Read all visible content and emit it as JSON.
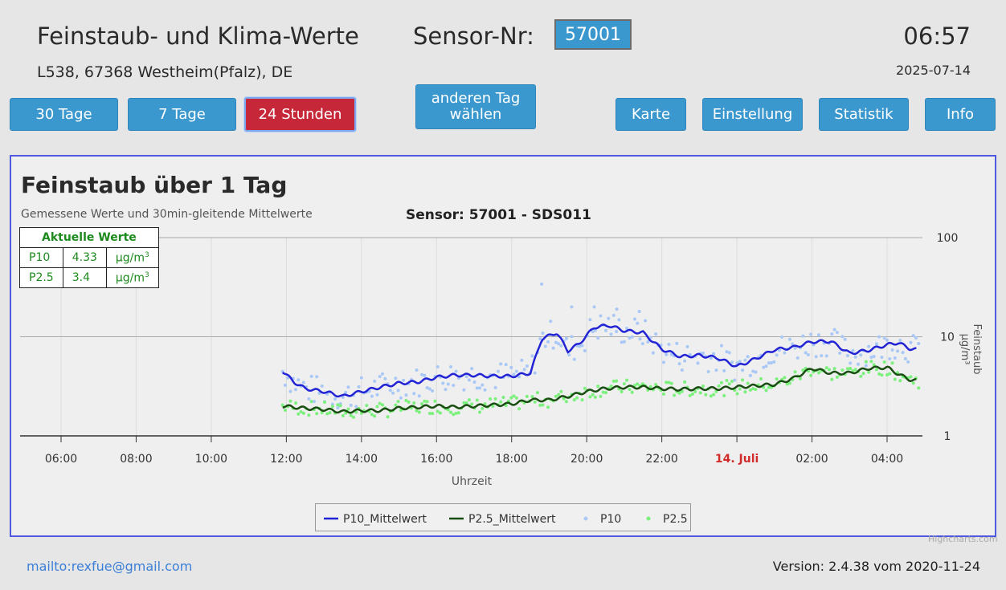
{
  "header": {
    "title": "Feinstaub- und Klima-Werte",
    "sensor_label": "Sensor-Nr:",
    "sensor_value": "57001",
    "time": "06:57",
    "address": "L538, 67368 Westheim(Pfalz), DE",
    "date": "2025-07-14"
  },
  "nav": {
    "btn_30": "30 Tage",
    "btn_7": "7 Tage",
    "btn_24": "24 Stunden",
    "other_day_1": "anderen Tag",
    "other_day_2": "wählen",
    "map": "Karte",
    "settings": "Einstellung",
    "stats": "Statistik",
    "info": "Info"
  },
  "chart": {
    "title": "Feinstaub über 1 Tag",
    "subtitle": "Gemessene Werte und 30min-gleitende Mittelwerte",
    "sensor": "Sensor: 57001 - SDS011",
    "credits": "Highcharts.com"
  },
  "current": {
    "heading": "Aktuelle Werte",
    "rows": [
      {
        "name": "P10",
        "value": "4.33",
        "unit": "µg/m",
        "sup": "3"
      },
      {
        "name": "P2.5",
        "value": "3.4",
        "unit": "µg/m",
        "sup": "3"
      }
    ]
  },
  "footer": {
    "mail": "mailto:rexfue@gmail.com",
    "version": "Version: 2.4.38 vom 2020-11-24"
  },
  "colors": {
    "p10_line": "#2323d6",
    "p25_line": "#1a4d12",
    "p10_dots": "#a9c8f5",
    "p25_dots": "#7cf07c",
    "active_button": "#c6283a",
    "button": "#3b98cf"
  },
  "chart_data": {
    "type": "line",
    "title": "Feinstaub über 1 Tag",
    "subtitle": "Gemessene Werte und 30min-gleitende Mittelwerte",
    "xlabel": "Uhrzeit",
    "ylabel": "Feinstaub µg/m³",
    "yscale": "log",
    "ylim": [
      1,
      100
    ],
    "yticks": [
      "1",
      "10",
      "100"
    ],
    "xlim": [
      5,
      29
    ],
    "xticks": [
      {
        "x": 6,
        "label": "06:00"
      },
      {
        "x": 8,
        "label": "08:00"
      },
      {
        "x": 10,
        "label": "10:00"
      },
      {
        "x": 12,
        "label": "12:00"
      },
      {
        "x": 14,
        "label": "14:00"
      },
      {
        "x": 16,
        "label": "16:00"
      },
      {
        "x": 18,
        "label": "18:00"
      },
      {
        "x": 20,
        "label": "20:00"
      },
      {
        "x": 22,
        "label": "22:00"
      },
      {
        "x": 24,
        "label": "14. Juli",
        "highlight": true
      },
      {
        "x": 26,
        "label": "02:00"
      },
      {
        "x": 28,
        "label": "04:00"
      }
    ],
    "legend_position": "bottom-center",
    "series": [
      {
        "name": "P10_Mittelwert",
        "kind": "line",
        "x": [
          11.9,
          12.2,
          12.5,
          13.0,
          13.5,
          14.0,
          14.5,
          15.0,
          15.5,
          16.0,
          16.5,
          17.0,
          17.5,
          18.0,
          18.5,
          18.8,
          19.2,
          19.5,
          19.8,
          20.2,
          20.6,
          21.0,
          21.5,
          22.0,
          22.5,
          23.0,
          23.5,
          24.0,
          24.5,
          25.0,
          25.5,
          26.0,
          26.5,
          27.0,
          27.5,
          28.0,
          28.3,
          28.6,
          28.8
        ],
        "y": [
          4.5,
          3.5,
          3.0,
          2.8,
          2.5,
          2.8,
          3.1,
          3.4,
          3.5,
          3.9,
          4.1,
          4.1,
          4.0,
          4.0,
          4.3,
          9.5,
          11.0,
          7.2,
          8.5,
          12.5,
          13.0,
          11.5,
          11.0,
          7.5,
          6.3,
          6.5,
          6.1,
          5.0,
          6.0,
          7.4,
          7.8,
          8.9,
          9.0,
          6.8,
          7.3,
          8.3,
          8.7,
          7.6,
          7.4
        ]
      },
      {
        "name": "P2.5_Mittelwert",
        "kind": "line",
        "x": [
          11.9,
          12.5,
          13.0,
          13.5,
          14.0,
          14.5,
          15.0,
          15.5,
          16.0,
          16.5,
          17.0,
          17.5,
          18.0,
          18.5,
          19.0,
          19.5,
          20.0,
          20.5,
          21.0,
          21.5,
          22.0,
          22.5,
          23.0,
          23.5,
          24.0,
          24.5,
          25.0,
          25.5,
          26.0,
          26.5,
          27.0,
          27.5,
          28.0,
          28.3,
          28.6,
          28.8
        ],
        "y": [
          2.0,
          1.9,
          1.85,
          1.75,
          1.8,
          1.8,
          1.9,
          1.95,
          2.0,
          1.95,
          2.0,
          2.05,
          2.1,
          2.3,
          2.3,
          2.5,
          2.8,
          3.0,
          3.1,
          3.1,
          3.0,
          2.95,
          3.0,
          3.0,
          3.1,
          3.2,
          3.3,
          3.8,
          4.8,
          4.3,
          4.3,
          4.8,
          4.9,
          4.2,
          3.7,
          3.6
        ]
      },
      {
        "name": "P10",
        "kind": "scatter",
        "x": [],
        "y": []
      },
      {
        "name": "P2.5",
        "kind": "scatter",
        "x": [],
        "y": []
      }
    ]
  }
}
